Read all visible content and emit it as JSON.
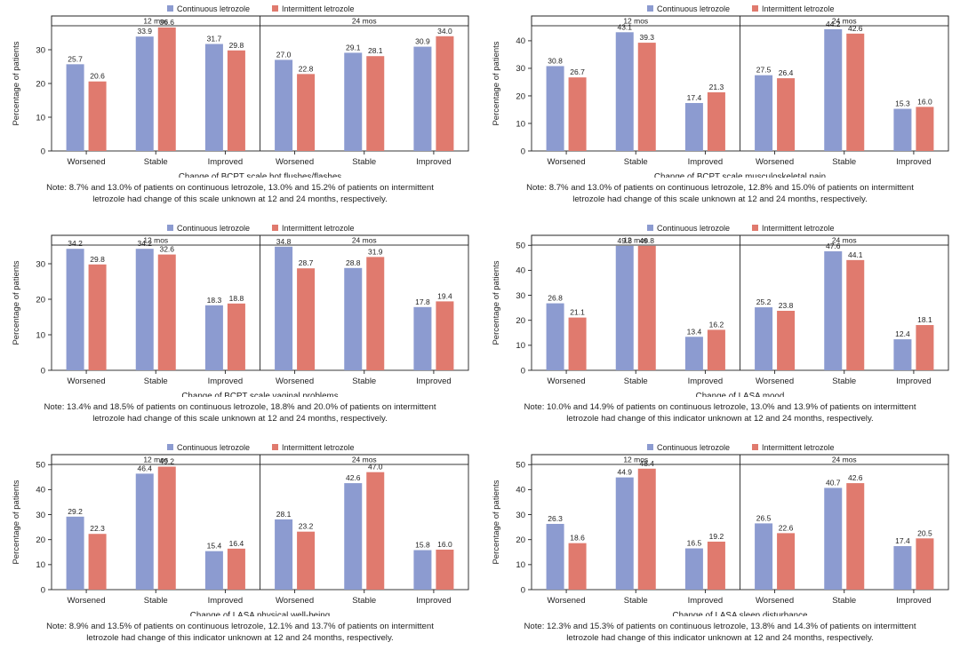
{
  "legend": {
    "continuous": "Continuous letrozole",
    "intermittent": "Intermittent letrozole"
  },
  "colors": {
    "continuous": "#8c9bd0",
    "intermittent": "#e07a6e"
  },
  "ylabel": "Percentage of patients",
  "chart_data": [
    {
      "type": "bar",
      "title": "Change of BCPT scale hot flushes/flashes",
      "xlabel": "Change of BCPT scale hot flushes/flashes",
      "ylabel": "Percentage of patients",
      "ylim": [
        0,
        40
      ],
      "yticks": [
        0,
        10,
        20,
        30
      ],
      "groups": [
        "12 mos",
        "24 mos"
      ],
      "categories": [
        "Worsened",
        "Stable",
        "Improved"
      ],
      "series": [
        {
          "name": "Continuous letrozole",
          "values": [
            [
              25.7,
              33.9,
              31.7
            ],
            [
              27.0,
              29.1,
              30.9
            ]
          ],
          "labels": [
            [
              "25.7",
              "33.9",
              "31.7"
            ],
            [
              "27.0",
              "29.1",
              "30.9"
            ]
          ]
        },
        {
          "name": "Intermittent letrozole",
          "values": [
            [
              20.6,
              36.6,
              29.8
            ],
            [
              22.8,
              28.1,
              34.0
            ]
          ],
          "labels": [
            [
              "20.6",
              "36.6",
              "29.8"
            ],
            [
              "22.8",
              "28.1",
              "34.0"
            ]
          ]
        }
      ],
      "note": [
        "Note: 8.7% and 13.0% of patients on continuous letrozole, 13.0% and 15.2% of patients on intermittent",
        "letrozole had change of this scale unknown at 12 and 24 months, respectively."
      ]
    },
    {
      "type": "bar",
      "title": "Change of BCPT scale musculoskeletal pain",
      "xlabel": "Change of BCPT scale musculoskeletal pain",
      "ylabel": "Percentage of patients",
      "ylim": [
        0,
        49
      ],
      "yticks": [
        0,
        10,
        20,
        30,
        40
      ],
      "groups": [
        "12 mos",
        "24 mos"
      ],
      "categories": [
        "Worsened",
        "Stable",
        "Improved"
      ],
      "series": [
        {
          "name": "Continuous letrozole",
          "values": [
            [
              30.8,
              43.1,
              17.4
            ],
            [
              27.5,
              44.2,
              15.3
            ]
          ],
          "labels": [
            [
              "30.8",
              "43.1",
              "17.4"
            ],
            [
              "27.5",
              "44.2",
              "15.3"
            ]
          ]
        },
        {
          "name": "Intermittent letrozole",
          "values": [
            [
              26.7,
              39.3,
              21.3
            ],
            [
              26.4,
              42.6,
              16.0
            ]
          ],
          "labels": [
            [
              "26.7",
              "39.3",
              "21.3"
            ],
            [
              "26.4",
              "42.6",
              "16.0"
            ]
          ]
        }
      ],
      "note": [
        "Note: 8.7% and 13.0% of patients on continuous letrozole, 12.8% and 15.0% of patients on intermittent",
        "letrozole had change of this scale unknown at 12 and 24 months, respectively."
      ]
    },
    {
      "type": "bar",
      "title": "Change of BCPT scale vaginal problems",
      "xlabel": "Change of BCPT scale vaginal problems",
      "ylabel": "Percentage of patients",
      "ylim": [
        0,
        38
      ],
      "yticks": [
        0,
        10,
        20,
        30
      ],
      "groups": [
        "12 mos",
        "24 mos"
      ],
      "categories": [
        "Worsened",
        "Stable",
        "Improved"
      ],
      "series": [
        {
          "name": "Continuous letrozole",
          "values": [
            [
              34.2,
              34.2,
              18.3
            ],
            [
              34.8,
              28.8,
              17.8
            ]
          ],
          "labels": [
            [
              "34.2",
              "34.2",
              "18.3"
            ],
            [
              "34.8",
              "28.8",
              "17.8"
            ]
          ]
        },
        {
          "name": "Intermittent letrozole",
          "values": [
            [
              29.8,
              32.6,
              18.8
            ],
            [
              28.7,
              31.9,
              19.4
            ]
          ],
          "labels": [
            [
              "29.8",
              "32.6",
              "18.8"
            ],
            [
              "28.7",
              "31.9",
              "19.4"
            ]
          ]
        }
      ],
      "note": [
        "Note: 13.4% and 18.5% of patients on continuous letrozole, 18.8% and 20.0% of patients on intermittent",
        "letrozole had change of this scale unknown at 12 and 24 months, respectively."
      ]
    },
    {
      "type": "bar",
      "title": "Change of LASA mood",
      "xlabel": "Change of LASA mood",
      "ylabel": "Percentage of patients",
      "ylim": [
        0,
        54
      ],
      "yticks": [
        0,
        10,
        20,
        30,
        40,
        50
      ],
      "groups": [
        "12 mos",
        "24 mos"
      ],
      "categories": [
        "Worsened",
        "Stable",
        "Improved"
      ],
      "series": [
        {
          "name": "Continuous letrozole",
          "values": [
            [
              26.8,
              49.8,
              13.4
            ],
            [
              25.2,
              47.6,
              12.4
            ]
          ],
          "labels": [
            [
              "26.8",
              "49.8",
              "13.4"
            ],
            [
              "25.2",
              "47.6",
              "12.4"
            ]
          ]
        },
        {
          "name": "Intermittent letrozole",
          "values": [
            [
              21.1,
              49.8,
              16.2
            ],
            [
              23.8,
              44.1,
              18.1
            ]
          ],
          "labels": [
            [
              "21.1",
              "49.8",
              "16.2"
            ],
            [
              "23.8",
              "44.1",
              "18.1"
            ]
          ]
        }
      ],
      "note": [
        "Note: 10.0% and 14.9% of patients on continuous letrozole, 13.0% and 13.9% of patients on intermittent",
        "letrozole had change of this indicator unknown at 12 and 24 months, respectively."
      ]
    },
    {
      "type": "bar",
      "title": "Change of LASA physical well-being",
      "xlabel": "Change of LASA physical well-being",
      "ylabel": "Percentage of patients",
      "ylim": [
        0,
        54
      ],
      "yticks": [
        0,
        10,
        20,
        30,
        40,
        50
      ],
      "groups": [
        "12 mos",
        "24 mos"
      ],
      "categories": [
        "Worsened",
        "Stable",
        "Improved"
      ],
      "series": [
        {
          "name": "Continuous letrozole",
          "values": [
            [
              29.2,
              46.4,
              15.4
            ],
            [
              28.1,
              42.6,
              15.8
            ]
          ],
          "labels": [
            [
              "29.2",
              "46.4",
              "15.4"
            ],
            [
              "28.1",
              "42.6",
              "15.8"
            ]
          ]
        },
        {
          "name": "Intermittent letrozole",
          "values": [
            [
              22.3,
              49.2,
              16.4
            ],
            [
              23.2,
              47.0,
              16.0
            ]
          ],
          "labels": [
            [
              "22.3",
              "49.2",
              "16.4"
            ],
            [
              "23.2",
              "47.0",
              "16.0"
            ]
          ]
        }
      ],
      "note": [
        "Note: 8.9% and 13.5% of patients on continuous letrozole, 12.1% and 13.7% of patients on intermittent",
        "letrozole had change of this indicator unknown at 12 and 24 months, respectively."
      ]
    },
    {
      "type": "bar",
      "title": "Change of LASA sleep disturbance",
      "xlabel": "Change of LASA sleep disturbance",
      "ylabel": "Percentage of patients",
      "ylim": [
        0,
        54
      ],
      "yticks": [
        0,
        10,
        20,
        30,
        40,
        50
      ],
      "groups": [
        "12 mos",
        "24 mos"
      ],
      "categories": [
        "Worsened",
        "Stable",
        "Improved"
      ],
      "series": [
        {
          "name": "Continuous letrozole",
          "values": [
            [
              26.3,
              44.9,
              16.5
            ],
            [
              26.5,
              40.7,
              17.4
            ]
          ],
          "labels": [
            [
              "26.3",
              "44.9",
              "16.5"
            ],
            [
              "26.5",
              "40.7",
              "17.4"
            ]
          ]
        },
        {
          "name": "Intermittent letrozole",
          "values": [
            [
              18.6,
              48.4,
              19.2
            ],
            [
              22.6,
              42.6,
              20.5
            ]
          ],
          "labels": [
            [
              "18.6",
              "48.4",
              "19.2"
            ],
            [
              "22.6",
              "42.6",
              "20.5"
            ]
          ]
        }
      ],
      "note": [
        "Note: 12.3% and 15.3% of patients on continuous letrozole, 13.8% and 14.3% of patients on intermittent",
        "letrozole had change of this indicator unknown at 12 and 24 months, respectively."
      ]
    }
  ]
}
